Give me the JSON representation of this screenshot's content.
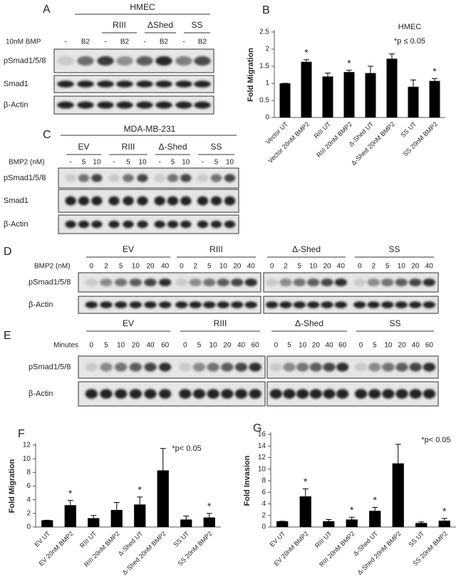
{
  "panels": [
    {
      "label": "A",
      "title": "HMEC",
      "groups": [
        "RIII",
        "ΔShed",
        "SS"
      ],
      "treatment": "10nM BMP",
      "lanes": [
        "-",
        "B2",
        "-",
        "B2",
        "-",
        "B2",
        "-",
        "B2"
      ],
      "rows": [
        "pSmad1/5/8",
        "Smad1",
        "β-Actin"
      ]
    },
    {
      "label": "C",
      "title": "MDA-MB-231",
      "groups": [
        "EV",
        "RIII",
        "Δ-Shed",
        "SS"
      ],
      "treatment": "BMP2 (nM)",
      "lanes": [
        "-",
        "5",
        "10",
        "-",
        "5",
        "10",
        "-",
        "5",
        "10",
        "-",
        "5",
        "10"
      ],
      "rows": [
        "pSmad1/5/8",
        "Smad1",
        "β-Actin"
      ]
    },
    {
      "label": "D",
      "groups": [
        "EV",
        "RIII",
        "Δ-Shed",
        "SS"
      ],
      "treatment": "BMP2 (nM)",
      "lanes": [
        "0",
        "2",
        "5",
        "10",
        "20",
        "40",
        "0",
        "2",
        "5",
        "10",
        "20",
        "40",
        "0",
        "2",
        "5",
        "10",
        "20",
        "40",
        "0",
        "2",
        "5",
        "10",
        "20",
        "40"
      ],
      "rows": [
        "pSmad1/5/8",
        "β-Actin"
      ]
    },
    {
      "label": "E",
      "groups": [
        "EV",
        "RIII",
        "Δ-Shed",
        "SS"
      ],
      "treatment": "Minutes",
      "lanes": [
        "0",
        "5",
        "10",
        "20",
        "40",
        "60",
        "0",
        "5",
        "10",
        "20",
        "40",
        "60",
        "0",
        "5",
        "10",
        "20",
        "40",
        "60",
        "0",
        "5",
        "10",
        "20",
        "40",
        "60"
      ],
      "rows": [
        "pSmad1/5/8",
        "β-Actin"
      ]
    }
  ],
  "chart_data": [
    {
      "type": "bar",
      "panel_label": "B",
      "y_label": "Fold Migration",
      "annotations": [
        "HMEC",
        "*p ≤ 0.05"
      ],
      "categories": [
        "Vector UT",
        "Vector 20nM BMP2",
        "RIII UT",
        "RIII 20nM BMP2",
        "Δ-Shed UT",
        "Δ-Shed 20nM BMP2",
        "SS UT",
        "SS 20nM BMP2"
      ],
      "values": [
        1.0,
        1.63,
        1.2,
        1.33,
        1.3,
        1.72,
        0.9,
        1.07
      ],
      "errors": [
        0,
        0.06,
        0.1,
        0.05,
        0.2,
        0.14,
        0.2,
        0.07
      ],
      "stars": [
        null,
        "*",
        null,
        "*",
        null,
        null,
        null,
        "*"
      ],
      "color": "#000000",
      "ylim": [
        0,
        2.5
      ],
      "yticks": [
        0,
        0.5,
        1,
        1.5,
        2,
        2.5
      ]
    },
    {
      "type": "bar",
      "panel_label": "F",
      "y_label": "Fold Migration",
      "annotations": [
        "*p< 0.05"
      ],
      "categories": [
        "EV UT",
        "EV 20nM BMP2",
        "RIII UT",
        "RIII 20nM BMP2",
        "Δ-Shed UT",
        "Δ-Shed 20nM BMP2",
        "SS UT",
        "SS 20nM BMP2"
      ],
      "values": [
        1.0,
        3.2,
        1.3,
        2.5,
        3.3,
        8.3,
        1.1,
        1.4
      ],
      "errors": [
        0,
        0.7,
        0.4,
        1.1,
        1.1,
        3.2,
        0.5,
        0.6
      ],
      "stars": [
        null,
        "*",
        null,
        null,
        "*",
        null,
        null,
        "*"
      ],
      "color": "#000000",
      "ylim": [
        0,
        12
      ],
      "yticks": [
        0,
        2,
        4,
        6,
        8,
        10,
        12
      ]
    },
    {
      "type": "bar",
      "panel_label": "G",
      "y_label": "Fold Invasion",
      "annotations": [
        "*p< 0.05"
      ],
      "categories": [
        "EV UT",
        "EV 20nM BMP2",
        "RIII UT",
        "RIII 20nM BMP2",
        "Δ-Shed UT",
        "Δ-Shed 20nM BMP2",
        "SS UT",
        "SS 20nM BMP2"
      ],
      "values": [
        1.0,
        5.3,
        1.0,
        1.3,
        2.8,
        11.0,
        0.7,
        1.1
      ],
      "errors": [
        0,
        1.3,
        0.3,
        0.4,
        0.6,
        3.3,
        0.2,
        0.4
      ],
      "stars": [
        null,
        "*",
        null,
        "*",
        "*",
        null,
        null,
        "*"
      ],
      "color": "#000000",
      "ylim": [
        0,
        16
      ],
      "yticks": [
        0,
        2,
        4,
        6,
        8,
        10,
        12,
        14,
        16
      ]
    }
  ]
}
